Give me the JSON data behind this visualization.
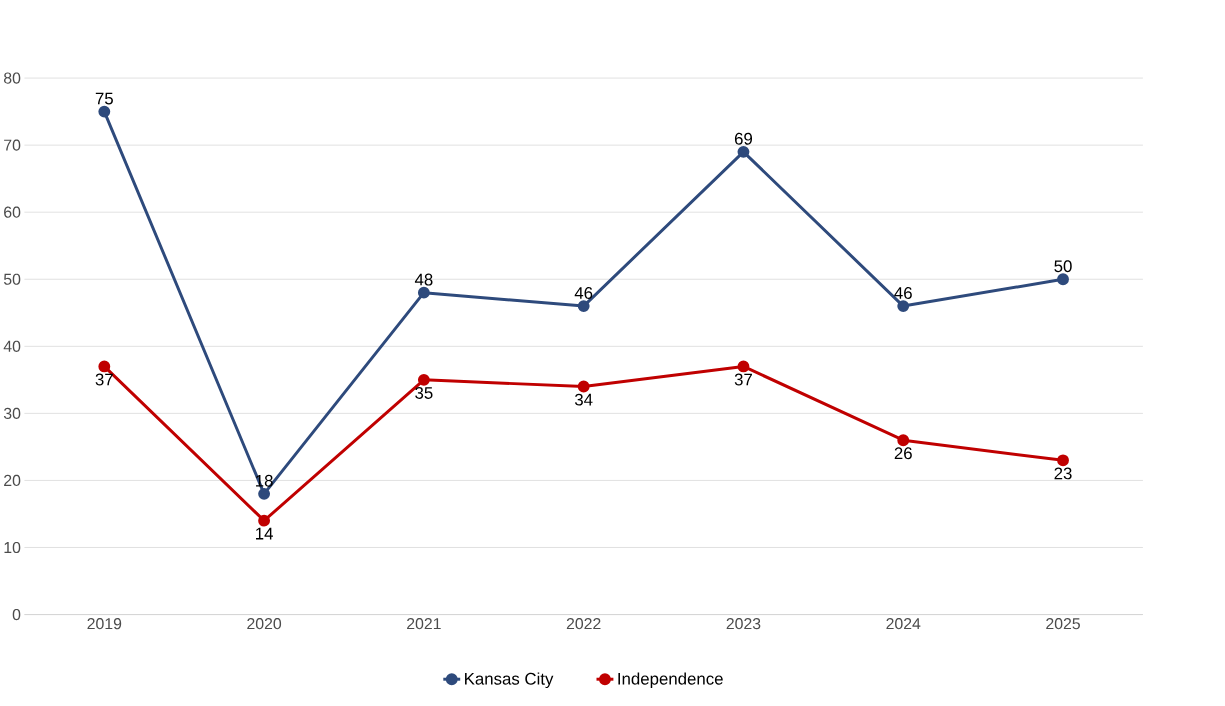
{
  "chart_data": {
    "type": "line",
    "categories": [
      "2019",
      "2020",
      "2021",
      "2022",
      "2023",
      "2024",
      "2025"
    ],
    "series": [
      {
        "name": "Kansas City",
        "color": "#2e4a7c",
        "values": [
          75,
          18,
          48,
          46,
          69,
          46,
          50
        ]
      },
      {
        "name": "Independence",
        "color": "#c00000",
        "values": [
          37,
          14,
          35,
          34,
          37,
          26,
          23
        ]
      }
    ],
    "ylim": [
      0,
      80
    ],
    "yticks": [
      0,
      10,
      20,
      30,
      40,
      50,
      60,
      70,
      80
    ],
    "grid": "y",
    "legend": "bottom",
    "marker": "circle",
    "line_style": "solid",
    "data_labels": true
  }
}
